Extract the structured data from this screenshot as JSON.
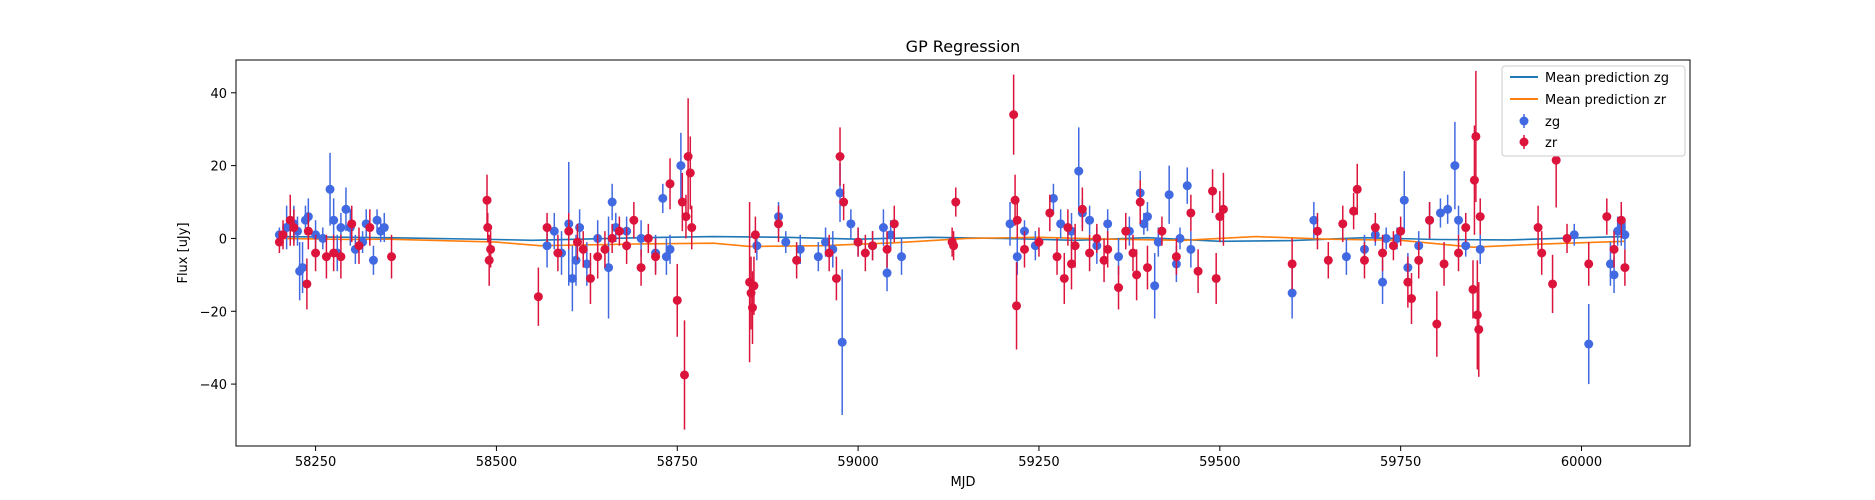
{
  "chart_data": {
    "type": "scatter",
    "title": "GP Regression",
    "xlabel": "MJD",
    "ylabel": "Flux [uJy]",
    "xlim": [
      58140,
      60150
    ],
    "ylim": [
      -57,
      49
    ],
    "xticks": [
      58250,
      58500,
      58750,
      59000,
      59250,
      59500,
      59750,
      60000
    ],
    "yticks": [
      -40,
      -20,
      0,
      20,
      40
    ],
    "legend_position": "top-right",
    "legend": [
      "Mean prediction zg",
      "Mean prediction zr",
      "zg",
      "zr"
    ],
    "colors": {
      "mean_zg": "#1f77b4",
      "mean_zr": "#ff7f0e",
      "zg": "#4169e1",
      "zr": "#dc143c"
    },
    "lines": [
      {
        "name": "Mean prediction zg",
        "color": "#1f77b4",
        "x": [
          58200,
          58300,
          58350,
          58500,
          58550,
          58700,
          58800,
          58900,
          59000,
          59100,
          59200,
          59300,
          59400,
          59500,
          59600,
          59700,
          59800,
          59900,
          60000,
          60060
        ],
        "y": [
          0.5,
          0.3,
          0.2,
          -0.3,
          -0.5,
          0.2,
          0.5,
          0.3,
          -0.2,
          0.3,
          0.0,
          -0.5,
          0.2,
          -0.8,
          -0.6,
          0.2,
          -0.3,
          -0.4,
          0.2,
          0.5
        ]
      },
      {
        "name": "Mean prediction zr",
        "color": "#ff7f0e",
        "x": [
          58200,
          58300,
          58350,
          58500,
          58560,
          58700,
          58800,
          58850,
          58950,
          59050,
          59150,
          59250,
          59350,
          59450,
          59550,
          59650,
          59750,
          59850,
          59950,
          60060
        ],
        "y": [
          0.0,
          -0.3,
          -0.2,
          -1.0,
          -2.0,
          -1.5,
          -1.3,
          -2.2,
          -2.0,
          -1.2,
          0.0,
          0.3,
          -0.2,
          -0.5,
          0.5,
          -0.2,
          -0.5,
          -2.4,
          -1.5,
          -0.8
        ]
      }
    ],
    "series": [
      {
        "name": "zg",
        "color": "#4169e1",
        "points": [
          [
            58200,
            1,
            2
          ],
          [
            58210,
            3,
            6
          ],
          [
            58220,
            4,
            5
          ],
          [
            58225,
            2,
            4
          ],
          [
            58228,
            -9,
            8
          ],
          [
            58232,
            -8,
            7
          ],
          [
            58236,
            5,
            4
          ],
          [
            58240,
            6,
            5
          ],
          [
            58250,
            1,
            4
          ],
          [
            58260,
            0,
            3
          ],
          [
            58270,
            13.5,
            10
          ],
          [
            58275,
            5,
            6
          ],
          [
            58280,
            -4,
            5
          ],
          [
            58285,
            3,
            4
          ],
          [
            58292,
            8,
            6
          ],
          [
            58298,
            3,
            5
          ],
          [
            58305,
            -3,
            4
          ],
          [
            58315,
            -1,
            3
          ],
          [
            58320,
            4,
            4
          ],
          [
            58330,
            -6,
            4
          ],
          [
            58335,
            5,
            3
          ],
          [
            58340,
            2,
            3
          ],
          [
            58345,
            3,
            4
          ],
          [
            58570,
            -2,
            6
          ],
          [
            58580,
            2,
            5
          ],
          [
            58590,
            -4,
            6
          ],
          [
            58600,
            4,
            17
          ],
          [
            58605,
            -11,
            9
          ],
          [
            58610,
            -6,
            7
          ],
          [
            58615,
            3,
            5
          ],
          [
            58625,
            -7,
            6
          ],
          [
            58640,
            0,
            5
          ],
          [
            58655,
            -8,
            14
          ],
          [
            58660,
            10,
            5
          ],
          [
            58665,
            3,
            4
          ],
          [
            58680,
            2,
            4
          ],
          [
            58700,
            0,
            5
          ],
          [
            58720,
            -4,
            5
          ],
          [
            58730,
            11,
            4
          ],
          [
            58735,
            -5,
            5
          ],
          [
            58740,
            -3,
            4
          ],
          [
            58755,
            20,
            9
          ],
          [
            58860,
            -2,
            4
          ],
          [
            58890,
            6,
            4
          ],
          [
            58900,
            -1,
            3
          ],
          [
            58920,
            -3,
            4
          ],
          [
            58945,
            -5,
            4
          ],
          [
            58955,
            -1,
            4
          ],
          [
            58965,
            -3,
            5
          ],
          [
            58975,
            12.5,
            8
          ],
          [
            58978,
            -28.5,
            20
          ],
          [
            58990,
            4,
            4
          ],
          [
            59000,
            -1,
            4
          ],
          [
            59020,
            -2,
            4
          ],
          [
            59035,
            3,
            5
          ],
          [
            59040,
            -9.5,
            5
          ],
          [
            59045,
            1,
            4
          ],
          [
            59060,
            -5,
            5
          ],
          [
            59210,
            4,
            6
          ],
          [
            59220,
            -5,
            5
          ],
          [
            59230,
            2,
            3
          ],
          [
            59245,
            -2,
            4
          ],
          [
            59270,
            11,
            4
          ],
          [
            59280,
            4,
            4
          ],
          [
            59295,
            2,
            5
          ],
          [
            59305,
            18.5,
            12
          ],
          [
            59310,
            7,
            4
          ],
          [
            59320,
            5,
            4
          ],
          [
            59330,
            -2,
            5
          ],
          [
            59345,
            4,
            4
          ],
          [
            59360,
            -5,
            5
          ],
          [
            59375,
            2,
            4
          ],
          [
            59390,
            12.5,
            6
          ],
          [
            59395,
            4,
            3
          ],
          [
            59400,
            6,
            4
          ],
          [
            59410,
            -13,
            9
          ],
          [
            59415,
            -1,
            4
          ],
          [
            59430,
            12,
            8
          ],
          [
            59440,
            -7,
            5
          ],
          [
            59445,
            0,
            3
          ],
          [
            59455,
            14.5,
            5
          ],
          [
            59460,
            -3,
            5
          ],
          [
            59600,
            -15,
            7
          ],
          [
            59630,
            5,
            5
          ],
          [
            59675,
            -5,
            5
          ],
          [
            59700,
            -3,
            4
          ],
          [
            59715,
            1,
            3
          ],
          [
            59725,
            -12,
            6
          ],
          [
            59730,
            0,
            3
          ],
          [
            59745,
            0,
            3
          ],
          [
            59755,
            10.5,
            8
          ],
          [
            59760,
            -8,
            4
          ],
          [
            59775,
            -2,
            4
          ],
          [
            59790,
            5,
            5
          ],
          [
            59805,
            7,
            4
          ],
          [
            59815,
            8,
            4
          ],
          [
            59825,
            20,
            12
          ],
          [
            59830,
            5,
            4
          ],
          [
            59840,
            -2,
            3
          ],
          [
            59860,
            -3,
            4
          ],
          [
            59990,
            1,
            3
          ],
          [
            60010,
            -29,
            11
          ],
          [
            60040,
            -7,
            6
          ],
          [
            60045,
            -10,
            5
          ],
          [
            60050,
            2,
            4
          ],
          [
            60055,
            3,
            5
          ],
          [
            60060,
            1,
            4
          ]
        ]
      },
      {
        "name": "zr",
        "color": "#dc143c",
        "points": [
          [
            58200,
            -1,
            3
          ],
          [
            58205,
            1,
            4
          ],
          [
            58215,
            5,
            7
          ],
          [
            58220,
            3,
            5
          ],
          [
            58238,
            -12.5,
            7
          ],
          [
            58240,
            2,
            5
          ],
          [
            58250,
            -4,
            5
          ],
          [
            58265,
            -5,
            6
          ],
          [
            58275,
            -4,
            5
          ],
          [
            58285,
            -5,
            6
          ],
          [
            58300,
            4,
            5
          ],
          [
            58310,
            -2,
            5
          ],
          [
            58325,
            3,
            5
          ],
          [
            58355,
            -5,
            6
          ],
          [
            58487,
            10.5,
            7
          ],
          [
            58488,
            3,
            4
          ],
          [
            58490,
            -6,
            7
          ],
          [
            58492,
            -3,
            5
          ],
          [
            58558,
            -16,
            8
          ],
          [
            58570,
            3,
            4
          ],
          [
            58585,
            -4,
            5
          ],
          [
            58600,
            2,
            5
          ],
          [
            58612,
            -1,
            5
          ],
          [
            58620,
            -3,
            5
          ],
          [
            58630,
            -11,
            7
          ],
          [
            58640,
            -5,
            6
          ],
          [
            58650,
            -3,
            5
          ],
          [
            58660,
            0,
            4
          ],
          [
            58670,
            2,
            4
          ],
          [
            58680,
            -2,
            5
          ],
          [
            58690,
            5,
            5
          ],
          [
            58700,
            -8,
            5
          ],
          [
            58710,
            0,
            4
          ],
          [
            58720,
            -5,
            5
          ],
          [
            58740,
            15,
            7
          ],
          [
            58750,
            -17,
            10
          ],
          [
            58757,
            10,
            8
          ],
          [
            58760,
            -37.5,
            15
          ],
          [
            58762,
            6,
            6
          ],
          [
            58765,
            22.5,
            16
          ],
          [
            58768,
            18,
            10
          ],
          [
            58770,
            3,
            6
          ],
          [
            58850,
            -12,
            22
          ],
          [
            58852,
            -15,
            10
          ],
          [
            58854,
            -19,
            10
          ],
          [
            58856,
            -13,
            8
          ],
          [
            58858,
            1,
            5
          ],
          [
            58890,
            4,
            5
          ],
          [
            58915,
            -6,
            5
          ],
          [
            58960,
            -4,
            5
          ],
          [
            58970,
            -11,
            6
          ],
          [
            58975,
            22.5,
            8
          ],
          [
            58980,
            10,
            5
          ],
          [
            59000,
            -1,
            4
          ],
          [
            59010,
            -4,
            5
          ],
          [
            59020,
            -2,
            4
          ],
          [
            59040,
            -3,
            5
          ],
          [
            59050,
            4,
            5
          ],
          [
            59130,
            -1,
            4
          ],
          [
            59132,
            -2,
            4
          ],
          [
            59135,
            10,
            4
          ],
          [
            59215,
            34,
            11
          ],
          [
            59217,
            10.5,
            7
          ],
          [
            59219,
            -18.5,
            12
          ],
          [
            59220,
            5,
            5
          ],
          [
            59230,
            -3,
            5
          ],
          [
            59250,
            -1,
            4
          ],
          [
            59265,
            7,
            5
          ],
          [
            59275,
            -5,
            5
          ],
          [
            59285,
            -11,
            7
          ],
          [
            59290,
            3,
            5
          ],
          [
            59295,
            -7,
            7
          ],
          [
            59300,
            -2,
            6
          ],
          [
            59310,
            8,
            6
          ],
          [
            59320,
            -4,
            5
          ],
          [
            59330,
            0,
            4
          ],
          [
            59340,
            -6,
            6
          ],
          [
            59345,
            -3,
            5
          ],
          [
            59360,
            -13.5,
            6
          ],
          [
            59370,
            2,
            5
          ],
          [
            59380,
            -4,
            5
          ],
          [
            59385,
            -10,
            7
          ],
          [
            59390,
            10,
            6
          ],
          [
            59400,
            -8,
            6
          ],
          [
            59420,
            2,
            4
          ],
          [
            59440,
            -5,
            5
          ],
          [
            59460,
            7,
            5
          ],
          [
            59470,
            -9,
            6
          ],
          [
            59490,
            13,
            6
          ],
          [
            59495,
            -11,
            7
          ],
          [
            59500,
            6,
            7
          ],
          [
            59505,
            8,
            10
          ],
          [
            59600,
            -7,
            7
          ],
          [
            59635,
            2,
            5
          ],
          [
            59650,
            -6,
            5
          ],
          [
            59670,
            4,
            5
          ],
          [
            59685,
            7.5,
            5
          ],
          [
            59690,
            13.5,
            7
          ],
          [
            59700,
            -6,
            5
          ],
          [
            59715,
            3,
            4
          ],
          [
            59725,
            -4,
            5
          ],
          [
            59740,
            -2,
            4
          ],
          [
            59750,
            2,
            4
          ],
          [
            59760,
            -12,
            7
          ],
          [
            59765,
            -16.5,
            7
          ],
          [
            59775,
            -6,
            5
          ],
          [
            59790,
            5,
            5
          ],
          [
            59800,
            -23.5,
            9
          ],
          [
            59810,
            -7,
            6
          ],
          [
            59830,
            -4,
            5
          ],
          [
            59840,
            3,
            4
          ],
          [
            59850,
            -14,
            8
          ],
          [
            59852,
            16,
            15
          ],
          [
            59854,
            28,
            18
          ],
          [
            59856,
            -21,
            15
          ],
          [
            59858,
            -25,
            13
          ],
          [
            59860,
            6,
            5
          ],
          [
            59940,
            3,
            6
          ],
          [
            59945,
            -4,
            6
          ],
          [
            59960,
            -12.5,
            8
          ],
          [
            59965,
            21.5,
            13
          ],
          [
            59980,
            0,
            4
          ],
          [
            60010,
            -7,
            6
          ],
          [
            60035,
            6,
            5
          ],
          [
            60045,
            -3,
            5
          ],
          [
            60055,
            5,
            5
          ],
          [
            60060,
            -8,
            5
          ]
        ]
      }
    ]
  }
}
